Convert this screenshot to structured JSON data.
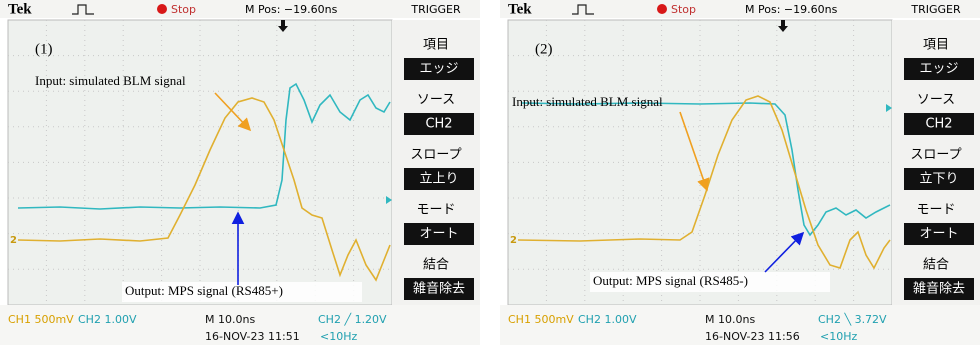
{
  "panels": [
    {
      "top_bar": {
        "brand": "Tek",
        "status": "Stop",
        "position": "M Pos: −19.60ns",
        "menu_title": "TRIGGER"
      },
      "label": "(1)",
      "channel_marker": "2",
      "annotations": {
        "input": "Input: simulated BLM  signal",
        "output": "Output: MPS signal (RS485+)"
      },
      "menu": [
        "項目",
        "エッジ",
        "ソース",
        "CH2",
        "スロープ",
        "立上り",
        "モード",
        "オート",
        "結合",
        "雑音除去"
      ],
      "bottom_bar": {
        "ch1": "CH1 500mV",
        "ch2": "CH2 1.00V",
        "timebase": "M 10.0ns",
        "trigger": "CH2 ╱ 1.20V",
        "date": "16-NOV-23 11:51",
        "freq": "<10Hz"
      }
    },
    {
      "top_bar": {
        "brand": "Tek",
        "status": "Stop",
        "position": "M Pos: −19.60ns",
        "menu_title": "TRIGGER"
      },
      "label": "(2)",
      "channel_marker": "2",
      "annotations": {
        "input": "Input: simulated BLM  signal",
        "output": "Output: MPS signal (RS485-)"
      },
      "menu": [
        "項目",
        "エッジ",
        "ソース",
        "CH2",
        "スロープ",
        "立下り",
        "モード",
        "オート",
        "結合",
        "雑音除去"
      ],
      "bottom_bar": {
        "ch1": "CH1 500mV",
        "ch2": "CH2 1.00V",
        "timebase": "M 10.0ns",
        "trigger": "CH2 ╲ 3.72V",
        "date": "16-NOV-23 11:56",
        "freq": "<10Hz"
      }
    }
  ]
}
